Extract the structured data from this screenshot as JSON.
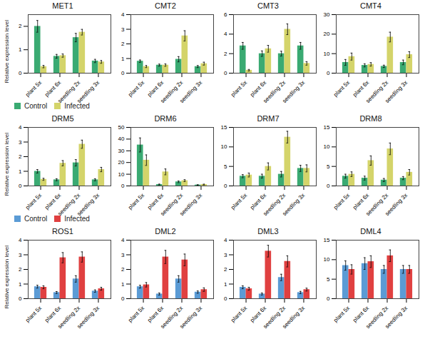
{
  "chart_data": [
    {
      "type": "bar",
      "title": "MET1",
      "ylabel": "Relative expression level",
      "legend": "bottom",
      "categories": [
        "plant 5x",
        "plant 6x",
        "seedling 2x",
        "seedling 3x"
      ],
      "series": [
        {
          "name": "Control",
          "color": "#3aaa72",
          "values": [
            2.0,
            0.72,
            1.52,
            0.52
          ],
          "errors": [
            0.25,
            0.08,
            0.18,
            0.07
          ]
        },
        {
          "name": "Infected",
          "color": "#d4d46a",
          "values": [
            0.28,
            0.75,
            1.75,
            0.48
          ],
          "errors": [
            0.05,
            0.07,
            0.12,
            0.06
          ]
        }
      ],
      "ylim": [
        0,
        2.5
      ],
      "yticks": [
        0,
        1,
        2
      ]
    },
    {
      "type": "bar",
      "title": "CMT2",
      "categories": [
        "plant 5x",
        "plant 6x",
        "seedling 2x",
        "seedling 3x"
      ],
      "series": [
        {
          "name": "Control",
          "color": "#3aaa72",
          "values": [
            0.82,
            0.55,
            0.95,
            0.45
          ],
          "errors": [
            0.08,
            0.07,
            0.18,
            0.07
          ]
        },
        {
          "name": "Infected",
          "color": "#d4d46a",
          "values": [
            0.45,
            0.55,
            2.55,
            0.65
          ],
          "errors": [
            0.07,
            0.08,
            0.35,
            0.1
          ]
        }
      ],
      "ylim": [
        0,
        4
      ],
      "yticks": [
        0,
        1,
        2,
        3,
        4
      ]
    },
    {
      "type": "bar",
      "title": "CMT3",
      "categories": [
        "plant 5x",
        "plant 6x",
        "seedling 2x",
        "seedling 3x"
      ],
      "series": [
        {
          "name": "Control",
          "color": "#3aaa72",
          "values": [
            2.8,
            2.0,
            2.0,
            2.8
          ],
          "errors": [
            0.35,
            0.28,
            0.25,
            0.35
          ]
        },
        {
          "name": "Infected",
          "color": "#d4d46a",
          "values": [
            0.3,
            2.5,
            4.5,
            1.0
          ],
          "errors": [
            0.08,
            0.35,
            0.55,
            0.18
          ]
        }
      ],
      "ylim": [
        0,
        6
      ],
      "yticks": [
        0,
        2,
        4,
        6
      ]
    },
    {
      "type": "bar",
      "title": "CMT4",
      "categories": [
        "plant 5x",
        "plant 6x",
        "seedling 2x",
        "seedling 3x"
      ],
      "series": [
        {
          "name": "Control",
          "color": "#3aaa72",
          "values": [
            5.5,
            4.0,
            3.5,
            5.5
          ],
          "errors": [
            1.5,
            0.8,
            0.6,
            1.2
          ]
        },
        {
          "name": "Infected",
          "color": "#d4d46a",
          "values": [
            8.5,
            4.5,
            18.5,
            9.5
          ],
          "errors": [
            1.8,
            0.9,
            2.5,
            1.5
          ]
        }
      ],
      "ylim": [
        0,
        30
      ],
      "yticks": [
        0,
        10,
        20,
        30
      ]
    },
    {
      "type": "bar",
      "title": "DRM5",
      "ylabel": "Relative expression level",
      "categories": [
        "plant 5x",
        "plant 6x",
        "seedling 2x",
        "seedling 3x"
      ],
      "series": [
        {
          "name": "Control",
          "color": "#3aaa72",
          "values": [
            1.0,
            0.42,
            1.58,
            0.42
          ],
          "errors": [
            0.12,
            0.07,
            0.22,
            0.07
          ]
        },
        {
          "name": "Infected",
          "color": "#d4d46a",
          "values": [
            0.45,
            1.55,
            2.85,
            1.12
          ],
          "errors": [
            0.07,
            0.18,
            0.28,
            0.15
          ]
        }
      ],
      "ylim": [
        0,
        4
      ],
      "yticks": [
        0,
        1,
        2,
        3,
        4
      ]
    },
    {
      "type": "bar",
      "title": "DRM6",
      "categories": [
        "plant 5x",
        "plant 6x",
        "seedling 2x",
        "seedling 3x"
      ],
      "series": [
        {
          "name": "Control",
          "color": "#3aaa72",
          "values": [
            35.0,
            1.2,
            3.5,
            0.8
          ],
          "errors": [
            6.0,
            0.35,
            0.7,
            0.2
          ]
        },
        {
          "name": "Infected",
          "color": "#d4d46a",
          "values": [
            22.0,
            12.0,
            4.5,
            1.2
          ],
          "errors": [
            4.5,
            2.5,
            0.8,
            0.3
          ]
        }
      ],
      "ylim": [
        0,
        50
      ],
      "yticks": [
        0,
        10,
        20,
        30,
        40,
        50
      ]
    },
    {
      "type": "bar",
      "title": "DRM7",
      "categories": [
        "plant 5x",
        "plant 6x",
        "seedling 2x",
        "seedling 3x"
      ],
      "series": [
        {
          "name": "Control",
          "color": "#3aaa72",
          "values": [
            2.5,
            2.5,
            3.0,
            4.5
          ],
          "errors": [
            0.4,
            0.5,
            0.7,
            0.8
          ]
        },
        {
          "name": "Infected",
          "color": "#d4d46a",
          "values": [
            2.8,
            5.0,
            12.5,
            4.5
          ],
          "errors": [
            0.5,
            0.9,
            1.5,
            0.9
          ]
        }
      ],
      "ylim": [
        0,
        15
      ],
      "yticks": [
        0,
        5,
        10,
        15
      ]
    },
    {
      "type": "bar",
      "title": "DRM8",
      "categories": [
        "plant 5x",
        "plant 6x",
        "seedling 2x",
        "seedling 3x"
      ],
      "series": [
        {
          "name": "Control",
          "color": "#3aaa72",
          "values": [
            2.5,
            2.0,
            1.5,
            2.0
          ],
          "errors": [
            0.5,
            0.5,
            0.4,
            0.4
          ]
        },
        {
          "name": "Infected",
          "color": "#d4d46a",
          "values": [
            3.0,
            6.5,
            9.5,
            3.5
          ],
          "errors": [
            0.6,
            1.2,
            1.5,
            0.7
          ]
        }
      ],
      "ylim": [
        0,
        15
      ],
      "yticks": [
        0,
        5,
        10,
        15
      ]
    },
    {
      "type": "bar",
      "title": "ROS1",
      "ylabel": "Relative expression level",
      "legend": "top",
      "categories": [
        "plant 5x",
        "plant 6x",
        "seedling 2x",
        "seedling 3x"
      ],
      "series": [
        {
          "name": "Control",
          "color": "#5b9bd5",
          "values": [
            0.82,
            0.42,
            1.35,
            0.52
          ],
          "errors": [
            0.1,
            0.07,
            0.22,
            0.08
          ]
        },
        {
          "name": "Infected",
          "color": "#e04040",
          "values": [
            0.78,
            2.8,
            2.85,
            0.68
          ],
          "errors": [
            0.1,
            0.35,
            0.35,
            0.1
          ]
        }
      ],
      "ylim": [
        0,
        4
      ],
      "yticks": [
        0,
        1,
        2,
        3,
        4
      ]
    },
    {
      "type": "bar",
      "title": "DML2",
      "categories": [
        "plant 5x",
        "plant 6x",
        "seedling 2x",
        "seedling 3x"
      ],
      "series": [
        {
          "name": "Control",
          "color": "#5b9bd5",
          "values": [
            0.82,
            0.32,
            1.35,
            0.45
          ],
          "errors": [
            0.1,
            0.07,
            0.22,
            0.08
          ]
        },
        {
          "name": "Infected",
          "color": "#e04040",
          "values": [
            0.95,
            2.85,
            2.65,
            0.62
          ],
          "errors": [
            0.15,
            0.45,
            0.4,
            0.12
          ]
        }
      ],
      "ylim": [
        0,
        4
      ],
      "yticks": [
        0,
        1,
        2,
        3,
        4
      ]
    },
    {
      "type": "bar",
      "title": "DML3",
      "categories": [
        "plant 5x",
        "plant 6x",
        "seedling 2x",
        "seedling 3x"
      ],
      "series": [
        {
          "name": "Control",
          "color": "#5b9bd5",
          "values": [
            0.78,
            0.32,
            1.45,
            0.42
          ],
          "errors": [
            0.1,
            0.07,
            0.22,
            0.08
          ]
        },
        {
          "name": "Infected",
          "color": "#e04040",
          "values": [
            0.68,
            3.25,
            2.55,
            0.62
          ],
          "errors": [
            0.1,
            0.4,
            0.38,
            0.1
          ]
        }
      ],
      "ylim": [
        0,
        4
      ],
      "yticks": [
        0,
        1,
        2,
        3,
        4
      ]
    },
    {
      "type": "bar",
      "title": "DML4",
      "categories": [
        "plant 5x",
        "plant 6x",
        "seedling 2x",
        "seedling 3x"
      ],
      "series": [
        {
          "name": "Control",
          "color": "#5b9bd5",
          "values": [
            8.5,
            9.0,
            7.5,
            7.5
          ],
          "errors": [
            1.2,
            1.5,
            1.0,
            1.0
          ]
        },
        {
          "name": "Infected",
          "color": "#e04040",
          "values": [
            7.5,
            9.5,
            11.0,
            7.5
          ],
          "errors": [
            1.2,
            1.5,
            1.5,
            1.0
          ]
        }
      ],
      "ylim": [
        0,
        15
      ],
      "yticks": [
        0,
        5,
        10,
        15
      ]
    }
  ]
}
